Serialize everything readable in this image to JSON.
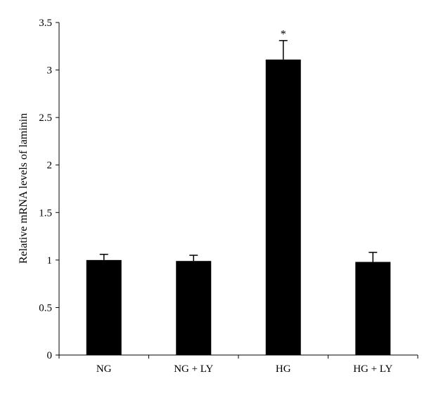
{
  "chart_data": {
    "type": "bar",
    "categories": [
      "NG",
      "NG + LY",
      "HG",
      "HG + LY"
    ],
    "values": [
      1.0,
      0.99,
      3.11,
      0.98
    ],
    "error": [
      0.06,
      0.06,
      0.2,
      0.1
    ],
    "annotations": [
      "",
      "",
      "*",
      ""
    ],
    "ylabel": "Relative mRNA levels of laminin",
    "ylim": [
      0,
      3.5
    ],
    "yticks": [
      0,
      0.5,
      1,
      1.5,
      2,
      2.5,
      3,
      3.5
    ],
    "ytick_labels": [
      "0",
      "0.5",
      "1",
      "1.5",
      "2",
      "2.5",
      "3",
      "3.5"
    ],
    "grid": false,
    "bar_color": "#000000"
  }
}
